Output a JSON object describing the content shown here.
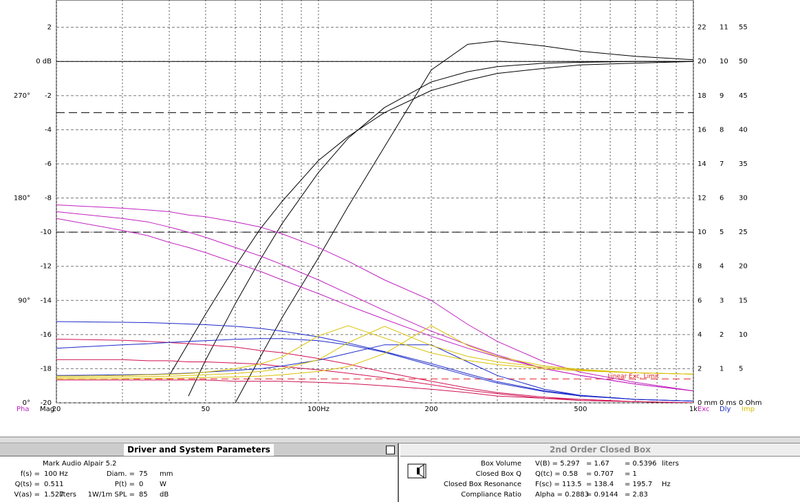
{
  "chart_data": {
    "type": "line",
    "xlog": true,
    "x": [
      20,
      30,
      35,
      40,
      45,
      50,
      60,
      70,
      80,
      100,
      120,
      150,
      200,
      250,
      300,
      400,
      500,
      700,
      1000
    ],
    "xlim": [
      20,
      1000
    ],
    "xticks": [
      20,
      50,
      {
        "value": 100,
        "label": "100Hz"
      },
      200,
      500,
      {
        "value": 1000,
        "label": "1k"
      }
    ],
    "xminor": [
      30,
      40,
      60,
      70,
      80,
      90,
      300,
      400,
      600,
      700,
      800,
      900
    ],
    "ylim": [
      -20,
      3.6
    ],
    "yticks": [
      2,
      {
        "value": 0,
        "label": "0 dB"
      },
      -2,
      -4,
      -6,
      -8,
      -10,
      -12,
      -14,
      -16,
      -18,
      -20
    ],
    "y2lim": [
      0,
      354
    ],
    "y2ticks": [
      {
        "value": 270,
        "label": "270°"
      },
      {
        "value": 180,
        "label": "180°"
      },
      {
        "value": 90,
        "label": "90°"
      },
      {
        "value": 0,
        "label": "0°"
      }
    ],
    "y3lim": [
      0,
      23.6
    ],
    "y3ticks": [
      22,
      20,
      18,
      16,
      14,
      12,
      10,
      8,
      6,
      4,
      2,
      {
        "value": 0,
        "label": "0 mm"
      }
    ],
    "y4lim": [
      0,
      11.8
    ],
    "y4ticks": [
      11,
      10,
      9,
      8,
      7,
      6,
      5,
      4,
      3,
      2,
      1,
      {
        "value": 0,
        "label": "0 ms"
      }
    ],
    "y5lim": [
      0,
      59
    ],
    "y5ticks": [
      55,
      50,
      45,
      40,
      35,
      30,
      25,
      20,
      15,
      10,
      5,
      {
        "value": 0,
        "label": "0 Ohm"
      }
    ],
    "axis_labels": [
      {
        "text": "Pha",
        "color": "#c020c0"
      },
      {
        "text": "Mag",
        "color": "#000000"
      },
      {
        "text": "Exc",
        "color": "#c020c0"
      },
      {
        "text": "Dly",
        "color": "#1a28c8"
      },
      {
        "text": "Imp",
        "color": "#d8c000"
      }
    ],
    "grid": true,
    "ref_lines": [
      -3,
      -10
    ],
    "zero_line": 0,
    "exc_limit": {
      "label": "Linear Exc. Limit",
      "value": 1.4,
      "color": "#e02020"
    },
    "series": [
      {
        "axis": "y",
        "color": "#000000",
        "values": [
          null,
          null,
          null,
          null,
          null,
          null,
          -20,
          -17.3,
          -15,
          -11.5,
          -8.5,
          -5,
          -0.5,
          1.0,
          1.2,
          0.9,
          0.6,
          0.3,
          0.1
        ]
      },
      {
        "axis": "y",
        "color": "#000000",
        "values": [
          null,
          null,
          null,
          null,
          -19.6,
          -17.5,
          -14.2,
          -11.6,
          -9.5,
          -6.5,
          -4.5,
          -2.7,
          -1.2,
          -0.6,
          -0.3,
          -0.1,
          -0.05,
          0,
          0
        ]
      },
      {
        "axis": "y",
        "color": "#000000",
        "values": [
          null,
          null,
          null,
          -18.4,
          -16.5,
          -14.8,
          -12,
          -9.8,
          -8.2,
          -5.8,
          -4.4,
          -3,
          -1.7,
          -1.1,
          -0.7,
          -0.4,
          -0.2,
          -0.1,
          0
        ]
      },
      {
        "axis": "y3",
        "color": "#c020c0",
        "values": [
          11.6,
          11.4,
          11.3,
          11.2,
          11.0,
          10.9,
          10.6,
          10.3,
          9.9,
          9.1,
          8.3,
          7.2,
          6.0,
          4.6,
          3.6,
          2.4,
          1.8,
          1.2,
          0.7
        ]
      },
      {
        "axis": "y3",
        "color": "#c020c0",
        "values": [
          11.2,
          10.8,
          10.6,
          10.3,
          10.0,
          9.7,
          9.1,
          8.6,
          8.1,
          7.2,
          6.4,
          5.4,
          4.2,
          3.4,
          2.8,
          2.0,
          1.6,
          1.1,
          0.7
        ]
      },
      {
        "axis": "y3",
        "color": "#c020c0",
        "values": [
          10.8,
          10.1,
          9.8,
          9.4,
          9.1,
          8.8,
          8.2,
          7.7,
          7.2,
          6.4,
          5.7,
          4.9,
          3.9,
          3.2,
          2.7,
          2.0,
          1.6,
          1.1,
          0.7
        ]
      },
      {
        "axis": "y2",
        "color": "#d01050",
        "values": [
          56,
          55,
          54,
          53,
          52,
          51,
          49,
          46,
          44,
          39,
          34,
          27,
          19,
          13,
          9,
          5,
          3,
          1,
          0
        ]
      },
      {
        "axis": "y2",
        "color": "#d01050",
        "values": [
          38,
          38,
          37,
          37,
          36,
          36,
          35,
          34,
          32,
          29,
          26,
          22,
          16,
          11,
          8,
          4,
          3,
          1,
          0
        ]
      },
      {
        "axis": "y2",
        "color": "#d01050",
        "values": [
          20,
          20,
          20,
          20,
          20,
          20,
          19,
          19,
          19,
          18,
          17,
          15,
          12,
          9,
          6,
          4,
          2,
          1,
          0
        ]
      },
      {
        "axis": "y4",
        "color": "#1a28c8",
        "values": [
          2.38,
          2.36,
          2.35,
          2.33,
          2.31,
          2.29,
          2.24,
          2.18,
          2.1,
          1.93,
          1.75,
          1.5,
          1.15,
          0.85,
          0.62,
          0.35,
          0.22,
          0.1,
          0.05
        ]
      },
      {
        "axis": "y4",
        "color": "#1a28c8",
        "values": [
          1.6,
          1.7,
          1.73,
          1.77,
          1.8,
          1.82,
          1.86,
          1.88,
          1.88,
          1.82,
          1.7,
          1.48,
          1.1,
          0.8,
          0.58,
          0.33,
          0.2,
          0.1,
          0.05
        ]
      },
      {
        "axis": "y4",
        "color": "#1a28c8",
        "values": [
          0.8,
          0.82,
          0.83,
          0.85,
          0.87,
          0.9,
          0.95,
          1.0,
          1.08,
          1.25,
          1.45,
          1.7,
          1.7,
          1.2,
          0.8,
          0.4,
          0.22,
          0.1,
          0.05
        ]
      },
      {
        "axis": "y5",
        "color": "#d8c000",
        "values": [
          3.9,
          4.0,
          4.1,
          4.2,
          4.3,
          4.5,
          5.0,
          5.7,
          6.7,
          9.8,
          11.3,
          9.5,
          7.3,
          6.2,
          5.6,
          5.0,
          4.7,
          4.4,
          4.2
        ]
      },
      {
        "axis": "y5",
        "color": "#d8c000",
        "values": [
          3.7,
          3.8,
          3.85,
          3.9,
          4.0,
          4.1,
          4.3,
          4.6,
          5.0,
          6.3,
          8.8,
          11.2,
          8.4,
          6.8,
          6.0,
          5.2,
          4.8,
          4.4,
          4.2
        ]
      },
      {
        "axis": "y5",
        "color": "#d8c000",
        "values": [
          3.5,
          3.55,
          3.6,
          3.6,
          3.65,
          3.7,
          3.8,
          3.9,
          4.1,
          4.6,
          5.3,
          7.2,
          11.3,
          8.4,
          6.8,
          5.4,
          4.9,
          4.4,
          4.2
        ]
      }
    ]
  },
  "left_panel": {
    "title": "Driver and System Parameters",
    "driver": "Mark Audio  Alpair 5.2",
    "rows": [
      [
        "f(s) =",
        "100",
        "Hz",
        "Diam. =",
        "75",
        "mm"
      ],
      [
        "Q(ts) =",
        "0.511",
        "",
        "P(t) =",
        "0",
        "W"
      ],
      [
        "V(as) =",
        "1.527",
        "liters",
        "1W/1m SPL =",
        "85",
        "dB"
      ]
    ]
  },
  "right_panel": {
    "title": "2nd Order Closed Box",
    "rows": [
      [
        "Box Volume",
        "V(B) = 5.297",
        "= 1.67",
        "= 0.5396",
        "liters"
      ],
      [
        "Closed Box Q",
        "Q(tc) = 0.58",
        "= 0.707",
        "= 1"
      ],
      [
        "Closed Box Resonance",
        "F(sc) = 113.5",
        "= 138.4",
        "= 195.7",
        "Hz"
      ],
      [
        "Compliance Ratio",
        "Alpha = 0.2883",
        "= 0.9144",
        "= 2.83"
      ]
    ]
  }
}
